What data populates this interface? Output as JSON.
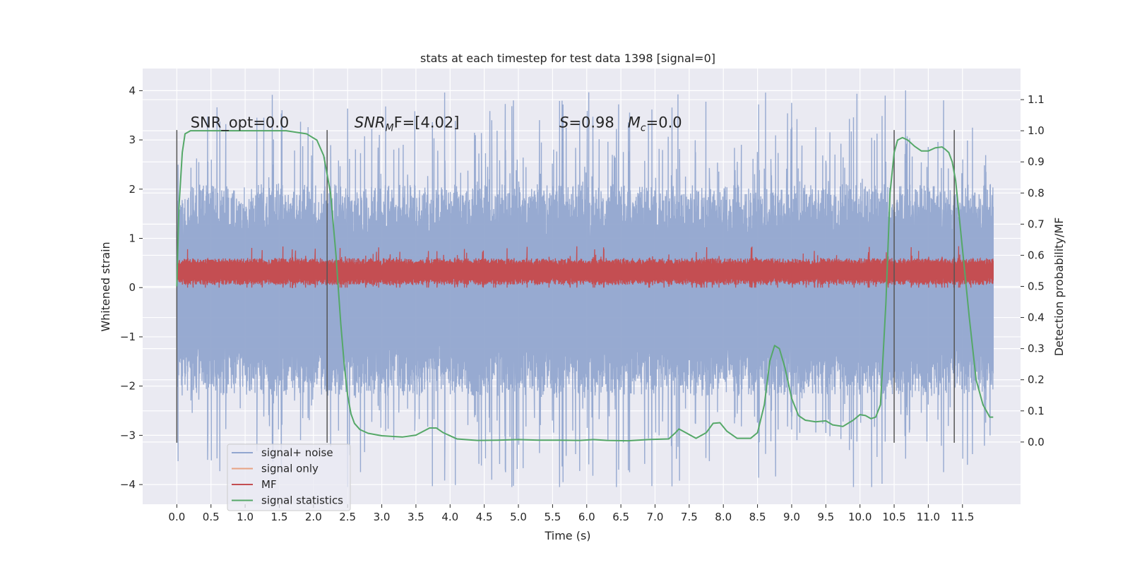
{
  "chart_data": {
    "type": "line",
    "title": "stats at each timestep for test data 1398 [signal=0]",
    "xlabel": "Time (s)",
    "ylabel_left": "Whitened strain",
    "ylabel_right": "Detection probability/MF",
    "xlim": [
      -0.5,
      12.35
    ],
    "ylim_left": [
      -4.4,
      4.45
    ],
    "ylim_right": [
      -0.2,
      1.2
    ],
    "xticks": [
      0.0,
      0.5,
      1.0,
      1.5,
      2.0,
      2.5,
      3.0,
      3.5,
      4.0,
      4.5,
      5.0,
      5.5,
      6.0,
      6.5,
      7.0,
      7.5,
      8.0,
      8.5,
      9.0,
      9.5,
      10.0,
      10.5,
      11.0,
      11.5
    ],
    "xtick_labels": [
      "0.0",
      "0.5",
      "1.0",
      "1.5",
      "2.0",
      "2.5",
      "3.0",
      "3.5",
      "4.0",
      "4.5",
      "5.0",
      "5.5",
      "6.0",
      "6.5",
      "7.0",
      "7.5",
      "8.0",
      "8.5",
      "9.0",
      "9.5",
      "10.0",
      "10.5",
      "11.0",
      "11.5"
    ],
    "yticks_left": [
      4,
      3,
      2,
      1,
      0,
      -1,
      -2,
      -3,
      -4
    ],
    "ytick_labels_left": [
      "4",
      "3",
      "2",
      "1",
      "0",
      "−1",
      "−2",
      "−3",
      "−4"
    ],
    "yticks_right": [
      1.1,
      1.0,
      0.9,
      0.8,
      0.7,
      0.6,
      0.5,
      0.4,
      0.3,
      0.2,
      0.1,
      0.0
    ],
    "ytick_labels_right": [
      "1.1",
      "1.0",
      "0.9",
      "0.8",
      "0.7",
      "0.6",
      "0.5",
      "0.4",
      "0.3",
      "0.2",
      "0.1",
      "0.0"
    ],
    "grid": true,
    "legend_position": "lower-left",
    "series": [
      {
        "name": "signal+ noise",
        "axis": "left",
        "color": "#92a6cf",
        "style": "dense noise band",
        "x_range": [
          0.0,
          11.95
        ],
        "approx_band": [
          -2.2,
          2.1
        ],
        "approx_extremes": [
          -4.05,
          4.1
        ]
      },
      {
        "name": "signal only",
        "axis": "left",
        "color": "#e8a383",
        "values": []
      },
      {
        "name": "MF",
        "axis": "left",
        "color": "#c44e52",
        "style": "dense noise band",
        "x_range": [
          0.0,
          11.95
        ],
        "approx_band": [
          0.05,
          0.6
        ],
        "approx_extremes": [
          0.0,
          1.0
        ]
      },
      {
        "name": "signal statistics",
        "axis": "right",
        "color": "#55a868",
        "x": [
          0.0,
          0.03,
          0.08,
          0.12,
          0.2,
          0.4,
          0.8,
          1.2,
          1.6,
          1.9,
          2.05,
          2.15,
          2.25,
          2.33,
          2.4,
          2.45,
          2.5,
          2.55,
          2.6,
          2.68,
          2.8,
          3.0,
          3.3,
          3.5,
          3.7,
          3.8,
          3.9,
          4.1,
          4.4,
          4.7,
          5.0,
          5.3,
          5.6,
          5.9,
          6.1,
          6.3,
          6.6,
          6.9,
          7.2,
          7.3,
          7.35,
          7.45,
          7.6,
          7.75,
          7.85,
          7.95,
          8.05,
          8.2,
          8.4,
          8.5,
          8.6,
          8.68,
          8.75,
          8.82,
          8.9,
          9.0,
          9.1,
          9.2,
          9.35,
          9.5,
          9.6,
          9.75,
          9.9,
          10.0,
          10.08,
          10.16,
          10.23,
          10.3,
          10.38,
          10.44,
          10.5,
          10.55,
          10.62,
          10.7,
          10.8,
          10.9,
          11.0,
          11.1,
          11.2,
          11.25,
          11.3,
          11.35,
          11.4,
          11.5,
          11.6,
          11.7,
          11.8,
          11.9,
          11.95
        ],
        "values": [
          0.5,
          0.75,
          0.93,
          0.99,
          1.0,
          1.0,
          1.0,
          1.0,
          1.0,
          0.99,
          0.97,
          0.92,
          0.8,
          0.6,
          0.38,
          0.25,
          0.15,
          0.09,
          0.06,
          0.04,
          0.028,
          0.02,
          0.016,
          0.022,
          0.045,
          0.045,
          0.03,
          0.01,
          0.005,
          0.006,
          0.008,
          0.006,
          0.006,
          0.005,
          0.008,
          0.005,
          0.004,
          0.008,
          0.01,
          0.03,
          0.042,
          0.03,
          0.012,
          0.03,
          0.06,
          0.062,
          0.035,
          0.012,
          0.012,
          0.03,
          0.12,
          0.26,
          0.31,
          0.3,
          0.24,
          0.14,
          0.085,
          0.07,
          0.065,
          0.068,
          0.055,
          0.05,
          0.07,
          0.088,
          0.085,
          0.075,
          0.08,
          0.12,
          0.45,
          0.8,
          0.93,
          0.97,
          0.978,
          0.97,
          0.95,
          0.935,
          0.935,
          0.945,
          0.948,
          0.94,
          0.93,
          0.9,
          0.84,
          0.62,
          0.4,
          0.2,
          0.12,
          0.08,
          0.08
        ]
      }
    ],
    "vertical_lines": [
      {
        "x": 0.0,
        "ymin": -3.15,
        "ymax": 3.2
      },
      {
        "x": 2.2,
        "ymin": -3.15,
        "ymax": 3.2
      },
      {
        "x": 10.5,
        "ymin": -3.15,
        "ymax": 3.2
      },
      {
        "x": 11.38,
        "ymin": -3.15,
        "ymax": 3.2
      }
    ],
    "annotations": [
      {
        "text": "SNR_opt=0.0",
        "x": 0.2,
        "y": 3.25
      },
      {
        "base": "SNR",
        "sub": "M",
        "tail": "F=[4.02]",
        "x": 2.6,
        "y": 3.25
      },
      {
        "italic": "S",
        "tail": "=0.98",
        "x": 5.6,
        "y": 3.25
      },
      {
        "base": "M",
        "sub": "c",
        "tail": "=0.0",
        "x": 6.6,
        "y": 3.25
      }
    ]
  }
}
